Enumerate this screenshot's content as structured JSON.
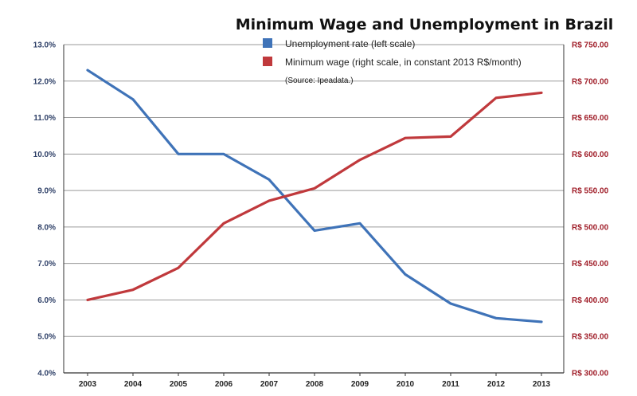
{
  "chart_data": {
    "type": "line",
    "title": "Minimum Wage and Unemployment in Brazil",
    "source": "(Source: Ipeadata.)",
    "categories": [
      "2003",
      "2004",
      "2005",
      "2006",
      "2007",
      "2008",
      "2009",
      "2010",
      "2011",
      "2012",
      "2013"
    ],
    "left_axis": {
      "ylim": [
        4.0,
        13.0
      ],
      "ticks": [
        4.0,
        5.0,
        6.0,
        7.0,
        8.0,
        9.0,
        10.0,
        11.0,
        12.0,
        13.0
      ],
      "tick_labels": [
        "4.0%",
        "5.0%",
        "6.0%",
        "7.0%",
        "8.0%",
        "9.0%",
        "10.0%",
        "11.0%",
        "12.0%",
        "13.0%"
      ],
      "color": "#2c3e66"
    },
    "right_axis": {
      "ylim": [
        300,
        750
      ],
      "ticks": [
        300,
        350,
        400,
        450,
        500,
        550,
        600,
        650,
        700,
        750
      ],
      "tick_labels": [
        "R$ 300.00",
        "R$ 350.00",
        "R$ 400.00",
        "R$ 450.00",
        "R$ 500.00",
        "R$ 550.00",
        "R$ 600.00",
        "R$ 650.00",
        "R$ 700.00",
        "R$ 750.00"
      ],
      "color": "#a01f2a"
    },
    "grid": true,
    "legend_position": "top-right",
    "series": [
      {
        "name": "Unemployment rate (left scale)",
        "axis": "left",
        "color": "#3f73b8",
        "values": [
          12.3,
          11.5,
          10.0,
          10.0,
          9.3,
          7.9,
          8.1,
          6.7,
          5.9,
          5.5,
          5.4
        ]
      },
      {
        "name": "Minimum wage (right scale, in constant 2013 R$/month)",
        "axis": "right",
        "color": "#c0393c",
        "values": [
          400,
          414,
          444,
          505,
          536,
          553,
          592,
          622,
          624,
          677,
          684
        ]
      }
    ]
  }
}
